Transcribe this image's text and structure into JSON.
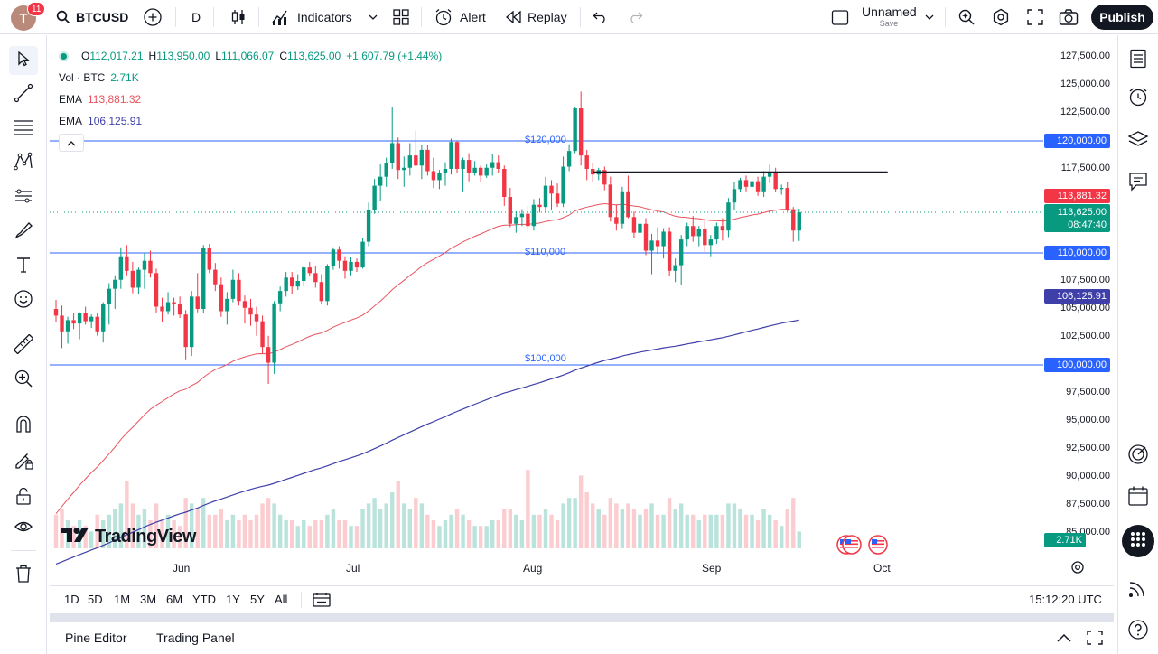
{
  "toolbar": {
    "avatar_letter": "T",
    "notifications": "11",
    "symbol": "BTCUSD",
    "interval": "D",
    "indicators_label": "Indicators",
    "alert_label": "Alert",
    "replay_label": "Replay",
    "layout_name": "Unnamed",
    "layout_save": "Save",
    "publish_label": "Publish"
  },
  "legend": {
    "o_key": "O",
    "o_val": "112,017.21",
    "h_key": "H",
    "h_val": "113,950.00",
    "l_key": "L",
    "l_val": "111,066.07",
    "c_key": "C",
    "c_val": "113,625.00",
    "change": "+1,607.79 (+1.44%)",
    "vol_label": "Vol · BTC",
    "vol_value": "2.71K",
    "ema1_label": "EMA",
    "ema1_value": "113,881.32",
    "ema1_color": "#e8535e",
    "ema2_label": "EMA",
    "ema2_value": "106,125.91",
    "ema2_color": "#3f3fa9"
  },
  "price_axis": {
    "ticks": [
      "127,500.00",
      "125,000.00",
      "122,500.00",
      "117,500.00",
      "107,500.00",
      "105,000.00",
      "102,500.00",
      "97,500.00",
      "95,000.00",
      "92,500.00",
      "90,000.00",
      "87,500.00",
      "85,000.00"
    ],
    "tick_values": [
      127500,
      125000,
      122500,
      117500,
      107500,
      105000,
      102500,
      97500,
      95000,
      92500,
      90000,
      87500,
      85000
    ],
    "hline_120": "120,000.00",
    "hline_110": "110,000.00",
    "hline_100": "100,000.00",
    "ema1_box": "113,881.32",
    "last_price": "113,625.00",
    "countdown": "08:47:40",
    "ema2_box": "106,125.91",
    "volume_box": "2.71K"
  },
  "horizontal_labels": {
    "h120": "$120,000",
    "h110": "$110,000",
    "h100": "$100,000"
  },
  "time_axis": {
    "jun": "Jun",
    "jul": "Jul",
    "aug": "Aug",
    "sep": "Sep",
    "oct": "Oct"
  },
  "watermark": "TradingView",
  "ranges": [
    "1D",
    "5D",
    "1M",
    "3M",
    "6M",
    "YTD",
    "1Y",
    "5Y",
    "All"
  ],
  "clock": "15:12:20 UTC",
  "panels": {
    "pine": "Pine Editor",
    "trading": "Trading Panel"
  },
  "colors": {
    "up": "#089981",
    "down": "#f23645",
    "hline": "#2962ff",
    "ema_fast": "#e8535e",
    "ema_slow": "#3f3fa9",
    "trendline": "#131722"
  },
  "chart_data": {
    "type": "candlestick",
    "resistance_level": 117200,
    "horizontal_levels": [
      120000,
      110000,
      100000
    ],
    "candles": [
      [
        105000,
        105800,
        103800,
        104400,
        6
      ],
      [
        104400,
        105300,
        101500,
        103000,
        7
      ],
      [
        103000,
        104300,
        101900,
        104000,
        5
      ],
      [
        104000,
        104600,
        103200,
        103700,
        4
      ],
      [
        103700,
        104700,
        102300,
        104600,
        5
      ],
      [
        104600,
        105200,
        103600,
        103900,
        4
      ],
      [
        103900,
        104500,
        103300,
        104300,
        3
      ],
      [
        104300,
        104600,
        102600,
        103000,
        6
      ],
      [
        103000,
        105600,
        102000,
        105400,
        5
      ],
      [
        105400,
        107300,
        103600,
        106800,
        6
      ],
      [
        106800,
        108000,
        105000,
        107600,
        7
      ],
      [
        107600,
        110500,
        106800,
        109700,
        8
      ],
      [
        109700,
        110700,
        108000,
        108400,
        12
      ],
      [
        108400,
        109200,
        106400,
        106900,
        8
      ],
      [
        106900,
        108700,
        106300,
        108500,
        6
      ],
      [
        108500,
        110000,
        106800,
        109300,
        7
      ],
      [
        109300,
        110200,
        107800,
        108200,
        5
      ],
      [
        108200,
        108600,
        104600,
        105200,
        8
      ],
      [
        105200,
        106000,
        103800,
        104800,
        5
      ],
      [
        104800,
        106500,
        104500,
        105600,
        6
      ],
      [
        105600,
        106000,
        104400,
        105400,
        5
      ],
      [
        105400,
        106100,
        104200,
        104500,
        4
      ],
      [
        104500,
        104900,
        100500,
        101600,
        9
      ],
      [
        101600,
        106600,
        100800,
        106100,
        8
      ],
      [
        106100,
        108200,
        104700,
        105000,
        7
      ],
      [
        105000,
        110700,
        104600,
        110400,
        9
      ],
      [
        110400,
        110800,
        108200,
        108500,
        6
      ],
      [
        108500,
        109100,
        106600,
        107200,
        6
      ],
      [
        107200,
        107800,
        104300,
        104800,
        7
      ],
      [
        104800,
        106500,
        103600,
        105900,
        5
      ],
      [
        105900,
        108500,
        105600,
        107600,
        6
      ],
      [
        107600,
        108200,
        105300,
        105700,
        5
      ],
      [
        105700,
        106200,
        103700,
        105100,
        6
      ],
      [
        105100,
        105900,
        103500,
        104500,
        5
      ],
      [
        104500,
        105200,
        102600,
        103900,
        6
      ],
      [
        103900,
        104400,
        101000,
        101600,
        8
      ],
      [
        101600,
        102600,
        98300,
        100200,
        9
      ],
      [
        100200,
        105700,
        99200,
        105500,
        8
      ],
      [
        105500,
        107000,
        104800,
        106600,
        6
      ],
      [
        106600,
        108300,
        106100,
        107800,
        5
      ],
      [
        107800,
        108300,
        106300,
        107000,
        5
      ],
      [
        107000,
        108100,
        106700,
        107500,
        4
      ],
      [
        107500,
        108800,
        107000,
        108700,
        5
      ],
      [
        108700,
        109200,
        107900,
        108200,
        4
      ],
      [
        108200,
        108800,
        106900,
        107400,
        5
      ],
      [
        107400,
        108100,
        105400,
        105700,
        5
      ],
      [
        105700,
        109000,
        105300,
        108800,
        6
      ],
      [
        108800,
        110500,
        108500,
        110300,
        7
      ],
      [
        110300,
        110600,
        108600,
        109300,
        5
      ],
      [
        109300,
        109700,
        107700,
        108400,
        5
      ],
      [
        108400,
        109600,
        108000,
        109200,
        4
      ],
      [
        109200,
        109500,
        108300,
        108700,
        4
      ],
      [
        108700,
        111300,
        108600,
        111000,
        7
      ],
      [
        111000,
        114500,
        110600,
        113800,
        8
      ],
      [
        113800,
        116600,
        113500,
        116000,
        9
      ],
      [
        116000,
        117900,
        114600,
        116800,
        7
      ],
      [
        116800,
        118500,
        115900,
        118000,
        8
      ],
      [
        118000,
        123000,
        117500,
        119800,
        10
      ],
      [
        119800,
        120300,
        116600,
        117400,
        12
      ],
      [
        117400,
        118600,
        115900,
        117600,
        8
      ],
      [
        117600,
        119800,
        116900,
        118700,
        7
      ],
      [
        118700,
        120900,
        117700,
        117800,
        9
      ],
      [
        117800,
        119600,
        116600,
        119200,
        8
      ],
      [
        119200,
        119600,
        116900,
        117300,
        6
      ],
      [
        117300,
        118500,
        115800,
        116500,
        5
      ],
      [
        116500,
        117400,
        115700,
        117100,
        4
      ],
      [
        117100,
        118100,
        116000,
        117500,
        5
      ],
      [
        117500,
        120200,
        117000,
        119900,
        6
      ],
      [
        119900,
        120000,
        117100,
        117500,
        7
      ],
      [
        117500,
        118500,
        115500,
        118300,
        6
      ],
      [
        118300,
        118900,
        116400,
        117100,
        5
      ],
      [
        117100,
        118200,
        116900,
        117600,
        4
      ],
      [
        117600,
        117800,
        116300,
        116900,
        4
      ],
      [
        116900,
        117900,
        116700,
        117600,
        4
      ],
      [
        117600,
        118800,
        116900,
        118100,
        5
      ],
      [
        118100,
        118700,
        117100,
        117500,
        5
      ],
      [
        117500,
        117800,
        114200,
        115000,
        7
      ],
      [
        115000,
        115800,
        112300,
        112600,
        7
      ],
      [
        112600,
        113700,
        111800,
        113200,
        6
      ],
      [
        113200,
        113900,
        112400,
        113500,
        5
      ],
      [
        113500,
        114200,
        111900,
        112400,
        14
      ],
      [
        112400,
        114800,
        112000,
        114300,
        6
      ],
      [
        114300,
        114900,
        113600,
        114100,
        6
      ],
      [
        114100,
        116800,
        113600,
        116000,
        7
      ],
      [
        116000,
        116500,
        113800,
        115300,
        6
      ],
      [
        115300,
        116200,
        114100,
        114400,
        5
      ],
      [
        114400,
        118600,
        114100,
        117700,
        8
      ],
      [
        117700,
        119700,
        117300,
        119100,
        9
      ],
      [
        119100,
        123000,
        118900,
        122900,
        9
      ],
      [
        122900,
        124400,
        117800,
        118700,
        13
      ],
      [
        118700,
        119200,
        116500,
        117500,
        10
      ],
      [
        117500,
        118000,
        116300,
        117000,
        8
      ],
      [
        117000,
        117600,
        116500,
        117400,
        7
      ],
      [
        117400,
        117700,
        115600,
        116100,
        6
      ],
      [
        116100,
        116800,
        112800,
        113200,
        9
      ],
      [
        113200,
        114300,
        112000,
        112600,
        8
      ],
      [
        112600,
        115900,
        112200,
        115500,
        7
      ],
      [
        115500,
        116900,
        113100,
        113200,
        8
      ],
      [
        113200,
        113700,
        111300,
        111800,
        7
      ],
      [
        111800,
        113100,
        111200,
        112600,
        6
      ],
      [
        112600,
        113100,
        109800,
        110200,
        7
      ],
      [
        110200,
        111700,
        108100,
        111100,
        8
      ],
      [
        111100,
        112300,
        109900,
        110600,
        6
      ],
      [
        110600,
        112200,
        109500,
        111900,
        6
      ],
      [
        111900,
        112300,
        107900,
        108400,
        9
      ],
      [
        108400,
        109500,
        107400,
        108900,
        7
      ],
      [
        108900,
        111600,
        107100,
        111200,
        8
      ],
      [
        111200,
        112700,
        110600,
        112400,
        6
      ],
      [
        112400,
        113300,
        111000,
        111500,
        6
      ],
      [
        111500,
        112400,
        110600,
        112100,
        5
      ],
      [
        112100,
        112900,
        110100,
        110700,
        6
      ],
      [
        110700,
        111600,
        109700,
        111200,
        6
      ],
      [
        111200,
        112700,
        110800,
        112400,
        6
      ],
      [
        112400,
        113100,
        111100,
        112000,
        6
      ],
      [
        112000,
        114900,
        111400,
        114500,
        8
      ],
      [
        114500,
        116300,
        113800,
        115700,
        8
      ],
      [
        115700,
        116700,
        115400,
        116500,
        7
      ],
      [
        116500,
        116900,
        115500,
        115900,
        6
      ],
      [
        115900,
        116700,
        115600,
        116400,
        6
      ],
      [
        116400,
        116800,
        115100,
        115500,
        5
      ],
      [
        115500,
        117300,
        115000,
        116800,
        7
      ],
      [
        116800,
        117900,
        116200,
        117200,
        6
      ],
      [
        117200,
        117600,
        115400,
        115700,
        5
      ],
      [
        115700,
        116100,
        115200,
        115800,
        4
      ],
      [
        115800,
        116300,
        113700,
        113900,
        7
      ],
      [
        113900,
        114100,
        111000,
        112000,
        9
      ],
      [
        112000,
        113950,
        111066,
        113625,
        3
      ]
    ]
  }
}
